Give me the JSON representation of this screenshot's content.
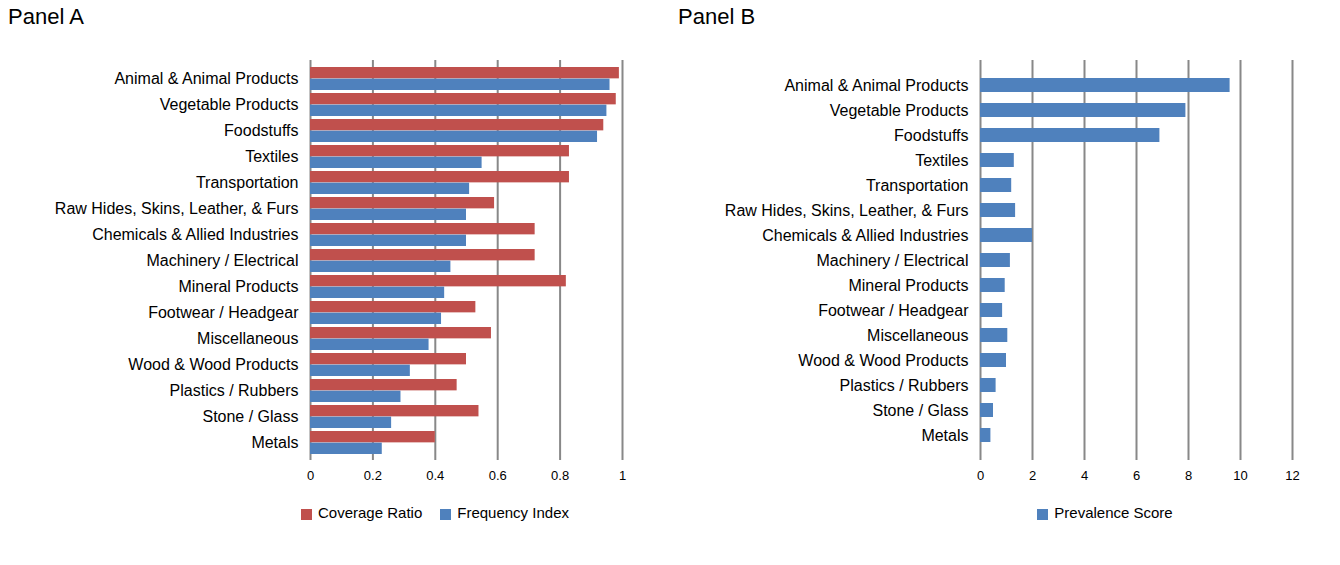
{
  "chart_data": [
    {
      "type": "bar",
      "title": "Panel A",
      "orientation": "horizontal",
      "categories": [
        "Animal & Animal Products",
        "Vegetable Products",
        "Foodstuffs",
        "Textiles",
        "Transportation",
        "Raw Hides, Skins, Leather, & Furs",
        "Chemicals & Allied Industries",
        "Machinery / Electrical",
        "Mineral Products",
        "Footwear / Headgear",
        "Miscellaneous",
        "Wood & Wood Products",
        "Plastics / Rubbers",
        "Stone / Glass",
        "Metals"
      ],
      "series": [
        {
          "name": "Coverage Ratio",
          "color": "#c0504d",
          "values": [
            0.99,
            0.98,
            0.94,
            0.83,
            0.83,
            0.59,
            0.72,
            0.72,
            0.82,
            0.53,
            0.58,
            0.5,
            0.47,
            0.54,
            0.4
          ]
        },
        {
          "name": "Frequency Index",
          "color": "#4f81bd",
          "values": [
            0.96,
            0.95,
            0.92,
            0.55,
            0.51,
            0.5,
            0.5,
            0.45,
            0.43,
            0.42,
            0.38,
            0.32,
            0.29,
            0.26,
            0.23
          ]
        }
      ],
      "xlim": [
        0,
        1
      ],
      "xticks": [
        0,
        0.2,
        0.4,
        0.6,
        0.8,
        1
      ],
      "grid": true,
      "legend": "bottom"
    },
    {
      "type": "bar",
      "title": "Panel B",
      "orientation": "horizontal",
      "categories": [
        "Animal & Animal Products",
        "Vegetable Products",
        "Foodstuffs",
        "Textiles",
        "Transportation",
        "Raw Hides, Skins, Leather, & Furs",
        "Chemicals & Allied Industries",
        "Machinery / Electrical",
        "Mineral Products",
        "Footwear / Headgear",
        "Miscellaneous",
        "Wood & Wood Products",
        "Plastics / Rubbers",
        "Stone / Glass",
        "Metals"
      ],
      "series": [
        {
          "name": "Prevalence Score",
          "color": "#4f81bd",
          "values": [
            9.6,
            7.9,
            6.9,
            1.3,
            1.2,
            1.35,
            2.0,
            1.15,
            0.95,
            0.85,
            1.05,
            1.0,
            0.6,
            0.5,
            0.4
          ]
        }
      ],
      "xlim": [
        0,
        12
      ],
      "xticks": [
        0,
        2,
        4,
        6,
        8,
        10,
        12
      ],
      "grid": true,
      "legend": "bottom"
    }
  ]
}
